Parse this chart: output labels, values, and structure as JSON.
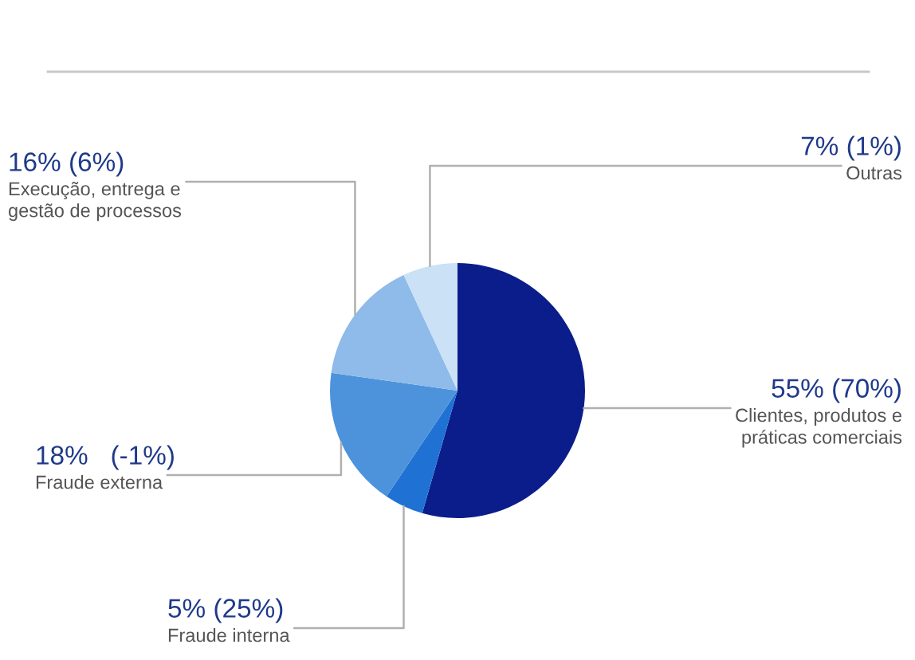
{
  "chart_data": {
    "type": "pie",
    "categories": [
      "Clientes, produtos e\npráticas comerciais",
      "Fraude interna",
      "Fraude externa",
      "Execução, entrega e\ngestão de processos",
      "Outras"
    ],
    "values": [
      55,
      5,
      18,
      16,
      7
    ],
    "colors": [
      "#0b1d8a",
      "#1f72d4",
      "#4d93dc",
      "#8ebbe9",
      "#cbe1f6"
    ],
    "value_labels": [
      "55% (70%)",
      "5% (25%)",
      "18%   (-1%)",
      "16% (6%)",
      "7% (1%)"
    ],
    "legend": false
  }
}
